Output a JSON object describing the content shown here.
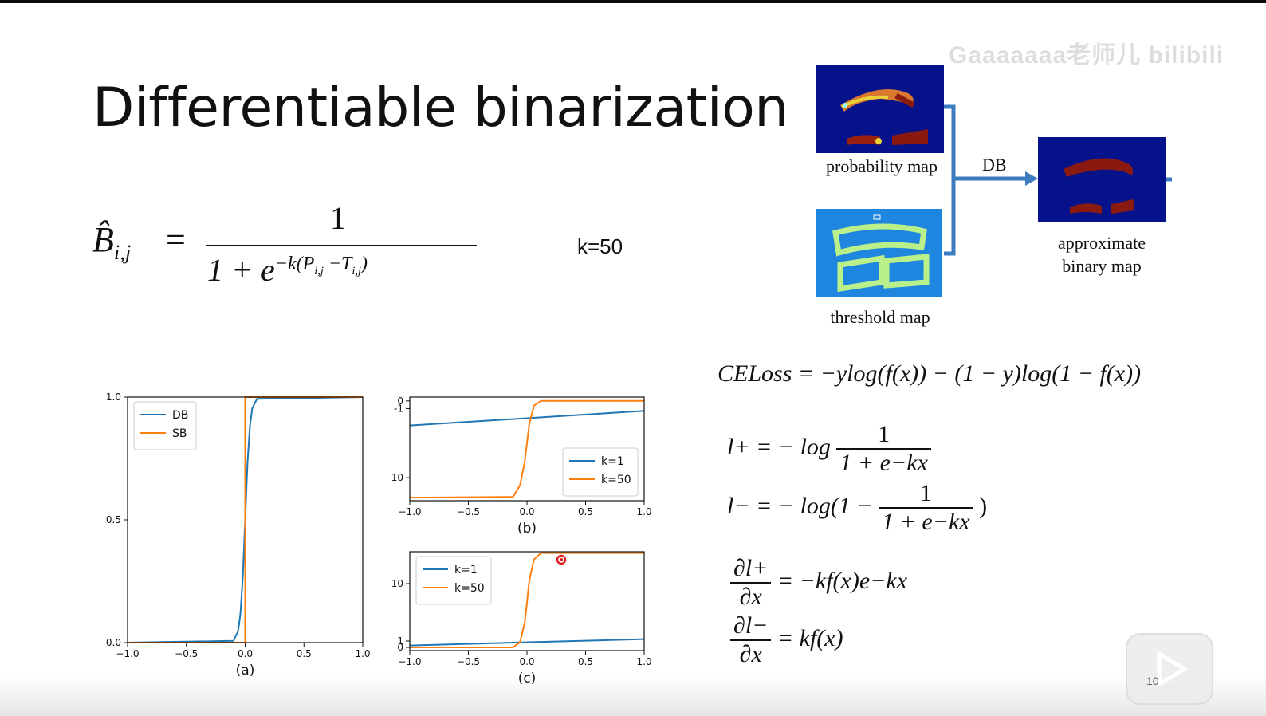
{
  "slide": {
    "title": "Differentiable binarization",
    "watermark": "Gaaaaaaa老师儿 bilibili",
    "page_number": "10"
  },
  "formula": {
    "lhs": "B̂i,j",
    "equals": "=",
    "numerator": "1",
    "denominator": "1 + e−k(Pi,j −Ti,j)",
    "k_label": "k=50"
  },
  "diagram": {
    "probability_caption": "probability map",
    "threshold_caption": "threshold map",
    "db_label": "DB",
    "approx_caption_line1": "approximate",
    "approx_caption_line2": "binary map",
    "arrow_color": "#3d7bc1"
  },
  "equations": {
    "celoss": "CELoss = −ylog(f(x)) − (1 − y)log(1 − f(x))",
    "lplus_prefix": "l+ = − log",
    "lplus_num": "1",
    "lplus_den": "1 + e−kx",
    "lminus_prefix": "l− = − log(1 −",
    "lminus_num": "1",
    "lminus_den": "1 + e−kx",
    "lminus_suffix": ")",
    "dlplus_num": "∂l+",
    "dlplus_den": "∂x",
    "dlplus_rhs": "= −kf(x)e−kx",
    "dlminus_num": "∂l−",
    "dlminus_den": "∂x",
    "dlminus_rhs": "= kf(x)"
  },
  "chart_data": [
    {
      "type": "line",
      "title": "",
      "caption": "(a)",
      "xlim": [
        -1.0,
        1.0
      ],
      "ylim": [
        0.0,
        1.0
      ],
      "xticks": [
        "−1.0",
        "−0.5",
        "0.0",
        "0.5",
        "1.0"
      ],
      "yticks": [
        "0.0",
        "0.5",
        "1.0"
      ],
      "legend_position": "top-left",
      "series": [
        {
          "name": "DB",
          "color": "#1f77b4",
          "x": [
            -1.0,
            -0.1,
            -0.06,
            -0.04,
            -0.02,
            0.0,
            0.02,
            0.04,
            0.06,
            0.1,
            1.0
          ],
          "y": [
            0.0,
            0.007,
            0.047,
            0.119,
            0.269,
            0.5,
            0.731,
            0.881,
            0.953,
            0.993,
            1.0
          ]
        },
        {
          "name": "SB",
          "color": "#ff7f0e",
          "x": [
            -1.0,
            0.0,
            0.0,
            1.0
          ],
          "y": [
            0.0,
            0.0,
            1.0,
            1.0
          ]
        }
      ]
    },
    {
      "type": "line",
      "title": "",
      "caption": "(b)",
      "xlim": [
        -1.0,
        1.0
      ],
      "ylim": [
        -13.0,
        0.5
      ],
      "xticks": [
        "−1.0",
        "−0.5",
        "0.0",
        "0.5",
        "1.0"
      ],
      "yticks": [
        "0",
        "-1",
        "-10"
      ],
      "legend_position": "bottom-right",
      "series": [
        {
          "name": "k=1",
          "color": "#1f77b4",
          "x": [
            -1.0,
            1.0
          ],
          "y": [
            -3.2,
            -1.3
          ]
        },
        {
          "name": "k=50",
          "color": "#ff7f0e",
          "x": [
            -1.0,
            -0.12,
            -0.06,
            -0.02,
            0.0,
            0.02,
            0.06,
            0.12,
            1.0
          ],
          "y": [
            -12.6,
            -12.5,
            -11.0,
            -8.0,
            -5.5,
            -3.0,
            -0.6,
            0.0,
            0.0
          ]
        }
      ]
    },
    {
      "type": "line",
      "title": "",
      "caption": "(c)",
      "xlim": [
        -1.0,
        1.0
      ],
      "ylim": [
        -0.5,
        15.0
      ],
      "xticks": [
        "−1.0",
        "−0.5",
        "0.0",
        "0.5",
        "1.0"
      ],
      "yticks": [
        "0",
        "1",
        "10"
      ],
      "legend_position": "top-left",
      "series": [
        {
          "name": "k=1",
          "color": "#1f77b4",
          "x": [
            -1.0,
            1.0
          ],
          "y": [
            0.3,
            1.3
          ]
        },
        {
          "name": "k=50",
          "color": "#ff7f0e",
          "x": [
            -1.0,
            -0.12,
            -0.06,
            -0.02,
            0.0,
            0.02,
            0.06,
            0.12,
            1.0
          ],
          "y": [
            0.0,
            0.0,
            0.8,
            3.8,
            7.0,
            10.5,
            13.8,
            14.8,
            14.8
          ]
        }
      ]
    }
  ]
}
